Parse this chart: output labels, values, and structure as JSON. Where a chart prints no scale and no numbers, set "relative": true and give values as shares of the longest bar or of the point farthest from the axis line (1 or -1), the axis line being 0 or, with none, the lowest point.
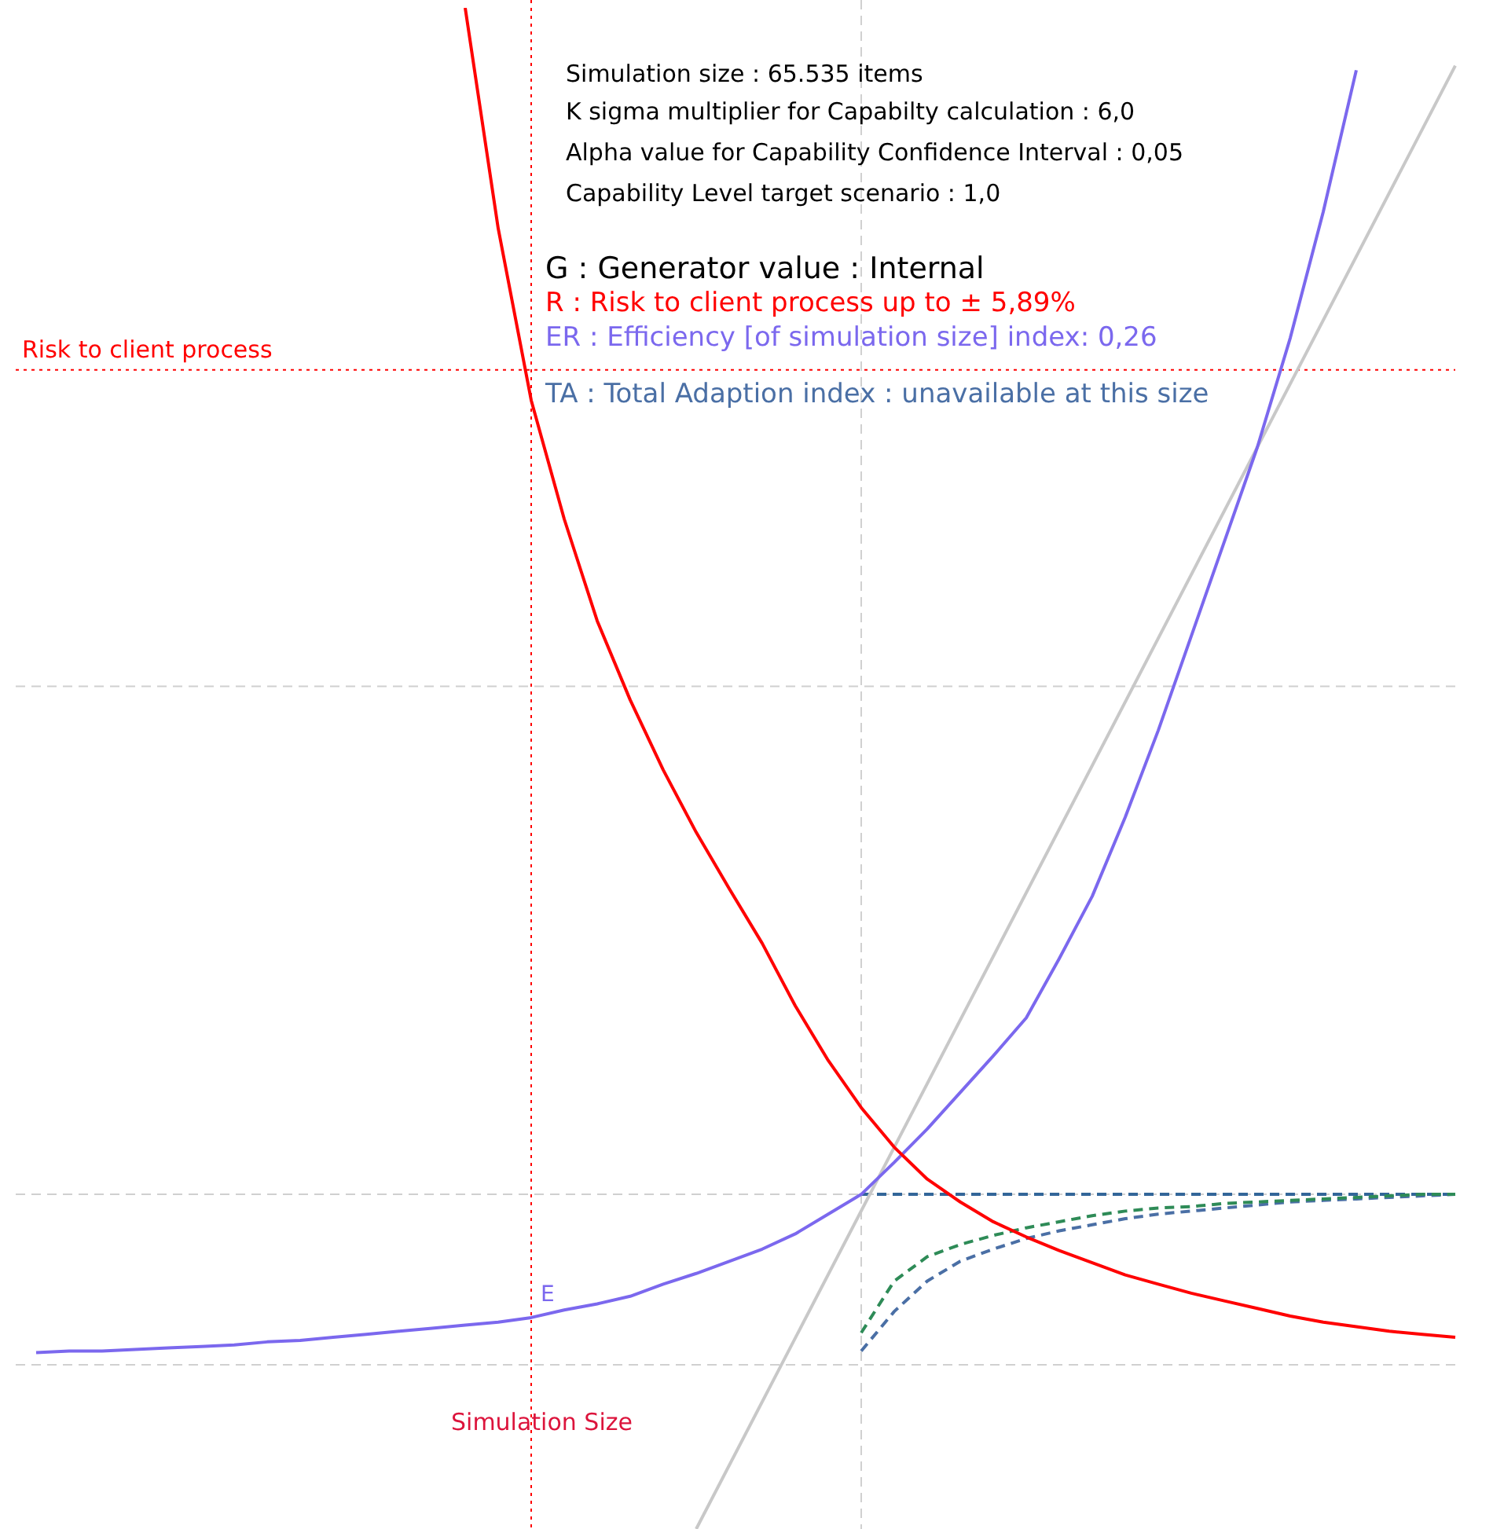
{
  "chart_data": {
    "type": "line",
    "relative": true,
    "legend": false,
    "grid": false,
    "tick_labels": false,
    "marker": "none",
    "categories": [
      null,
      null,
      null,
      null,
      null,
      null,
      null,
      null,
      null,
      null,
      null,
      null,
      null,
      null,
      null,
      null,
      null,
      null,
      null,
      null,
      null,
      null,
      null,
      null,
      null,
      null,
      null,
      null,
      null,
      null,
      null,
      null,
      null,
      null,
      null,
      null,
      null,
      null,
      null,
      null,
      null,
      null,
      null,
      null
    ],
    "series": [
      {
        "color": "#ff0000",
        "line_style": "solid",
        "values": [
          null,
          null,
          null,
          null,
          null,
          null,
          null,
          null,
          null,
          null,
          null,
          null,
          null,
          1.0,
          0.855,
          0.742,
          0.664,
          0.597,
          0.545,
          0.499,
          0.458,
          0.421,
          0.385,
          0.344,
          0.308,
          0.277,
          0.251,
          0.23,
          0.215,
          0.202,
          0.192,
          0.183,
          0.175,
          0.167,
          0.161,
          0.155,
          0.15,
          0.145,
          0.14,
          0.136,
          0.133,
          0.13,
          0.128,
          0.126
        ]
      },
      {
        "color": "#7b68ee",
        "line_style": "solid",
        "values": [
          0.116,
          0.117,
          0.117,
          0.118,
          0.119,
          0.12,
          0.121,
          0.123,
          0.124,
          0.126,
          0.128,
          0.13,
          0.132,
          0.134,
          0.136,
          0.139,
          0.144,
          0.148,
          0.153,
          0.161,
          0.168,
          0.176,
          0.184,
          0.194,
          0.207,
          0.22,
          0.241,
          0.263,
          0.287,
          0.311,
          0.336,
          0.375,
          0.416,
          0.468,
          0.525,
          0.587,
          0.649,
          0.711,
          0.783,
          0.866,
          0.959,
          null,
          null,
          null
        ]
      },
      {
        "color": "#c8c8c8",
        "line_style": "solid",
        "values": [
          null,
          null,
          null,
          null,
          null,
          null,
          null,
          null,
          null,
          null,
          null,
          null,
          null,
          null,
          null,
          null,
          null,
          null,
          null,
          null,
          0,
          null,
          null,
          null,
          null,
          null,
          null,
          null,
          null,
          null,
          null,
          null,
          null,
          null,
          null,
          null,
          null,
          null,
          null,
          null,
          null,
          null,
          null,
          0.962
        ]
      },
      {
        "color": "#2e8b57",
        "line_style": "dashed",
        "values": [
          null,
          null,
          null,
          null,
          null,
          null,
          null,
          null,
          null,
          null,
          null,
          null,
          null,
          null,
          null,
          null,
          null,
          null,
          null,
          null,
          null,
          null,
          null,
          null,
          null,
          0.129,
          0.163,
          0.179,
          0.187,
          0.193,
          0.198,
          0.202,
          0.206,
          0.209,
          0.211,
          0.212,
          0.214,
          0.215,
          0.216,
          0.217,
          0.218,
          0.219,
          0.22,
          0.22
        ]
      },
      {
        "color": "#4a6fa5",
        "line_style": "dashed",
        "values": [
          null,
          null,
          null,
          null,
          null,
          null,
          null,
          null,
          null,
          null,
          null,
          null,
          null,
          null,
          null,
          null,
          null,
          null,
          null,
          null,
          null,
          null,
          null,
          null,
          null,
          0.117,
          0.143,
          0.163,
          0.176,
          0.184,
          0.191,
          0.196,
          0.2,
          0.204,
          0.207,
          0.209,
          0.211,
          0.213,
          0.215,
          0.216,
          0.217,
          0.218,
          0.219,
          0.22
        ]
      },
      {
        "color": "#336699",
        "line_style": "dashed",
        "values": [
          null,
          null,
          null,
          null,
          null,
          null,
          null,
          null,
          null,
          null,
          null,
          null,
          null,
          null,
          null,
          null,
          null,
          null,
          null,
          null,
          null,
          null,
          null,
          null,
          null,
          0.22,
          0.22,
          0.22,
          0.22,
          0.22,
          0.22,
          0.22,
          0.22,
          0.22,
          0.22,
          0.22,
          0.22,
          0.22,
          0.22,
          0.22,
          0.22,
          0.22,
          0.22,
          0.22
        ]
      }
    ],
    "ref_lines": [
      {
        "axis": "y",
        "value": 0.762,
        "label": "Risk to client process",
        "color": "#ff0000",
        "line_style": "dotted"
      },
      {
        "axis": "y",
        "value": 0.554,
        "color": "#d0d0d0",
        "line_style": "dashed"
      },
      {
        "axis": "y",
        "value": 0.22,
        "color": "#d0d0d0",
        "line_style": "dashed"
      },
      {
        "axis": "y",
        "value": 0.108,
        "color": "#d0d0d0",
        "line_style": "dashed"
      }
    ],
    "annotations": [
      "Simulation size : 65.535 items",
      "K sigma multiplier for Capabilty calculation : 6,0",
      "Alpha value for Capability Confidence Interval : 0,05",
      "Capability Level target scenario : 1,0",
      "G : Generator value : Internal",
      "R : Risk to client process up to ± 5,89%",
      "ER : Efficiency [of simulation size] index: 0,26",
      "TA : Total Adaption index : unavailable at this size",
      "E",
      "Simulation Size"
    ]
  }
}
